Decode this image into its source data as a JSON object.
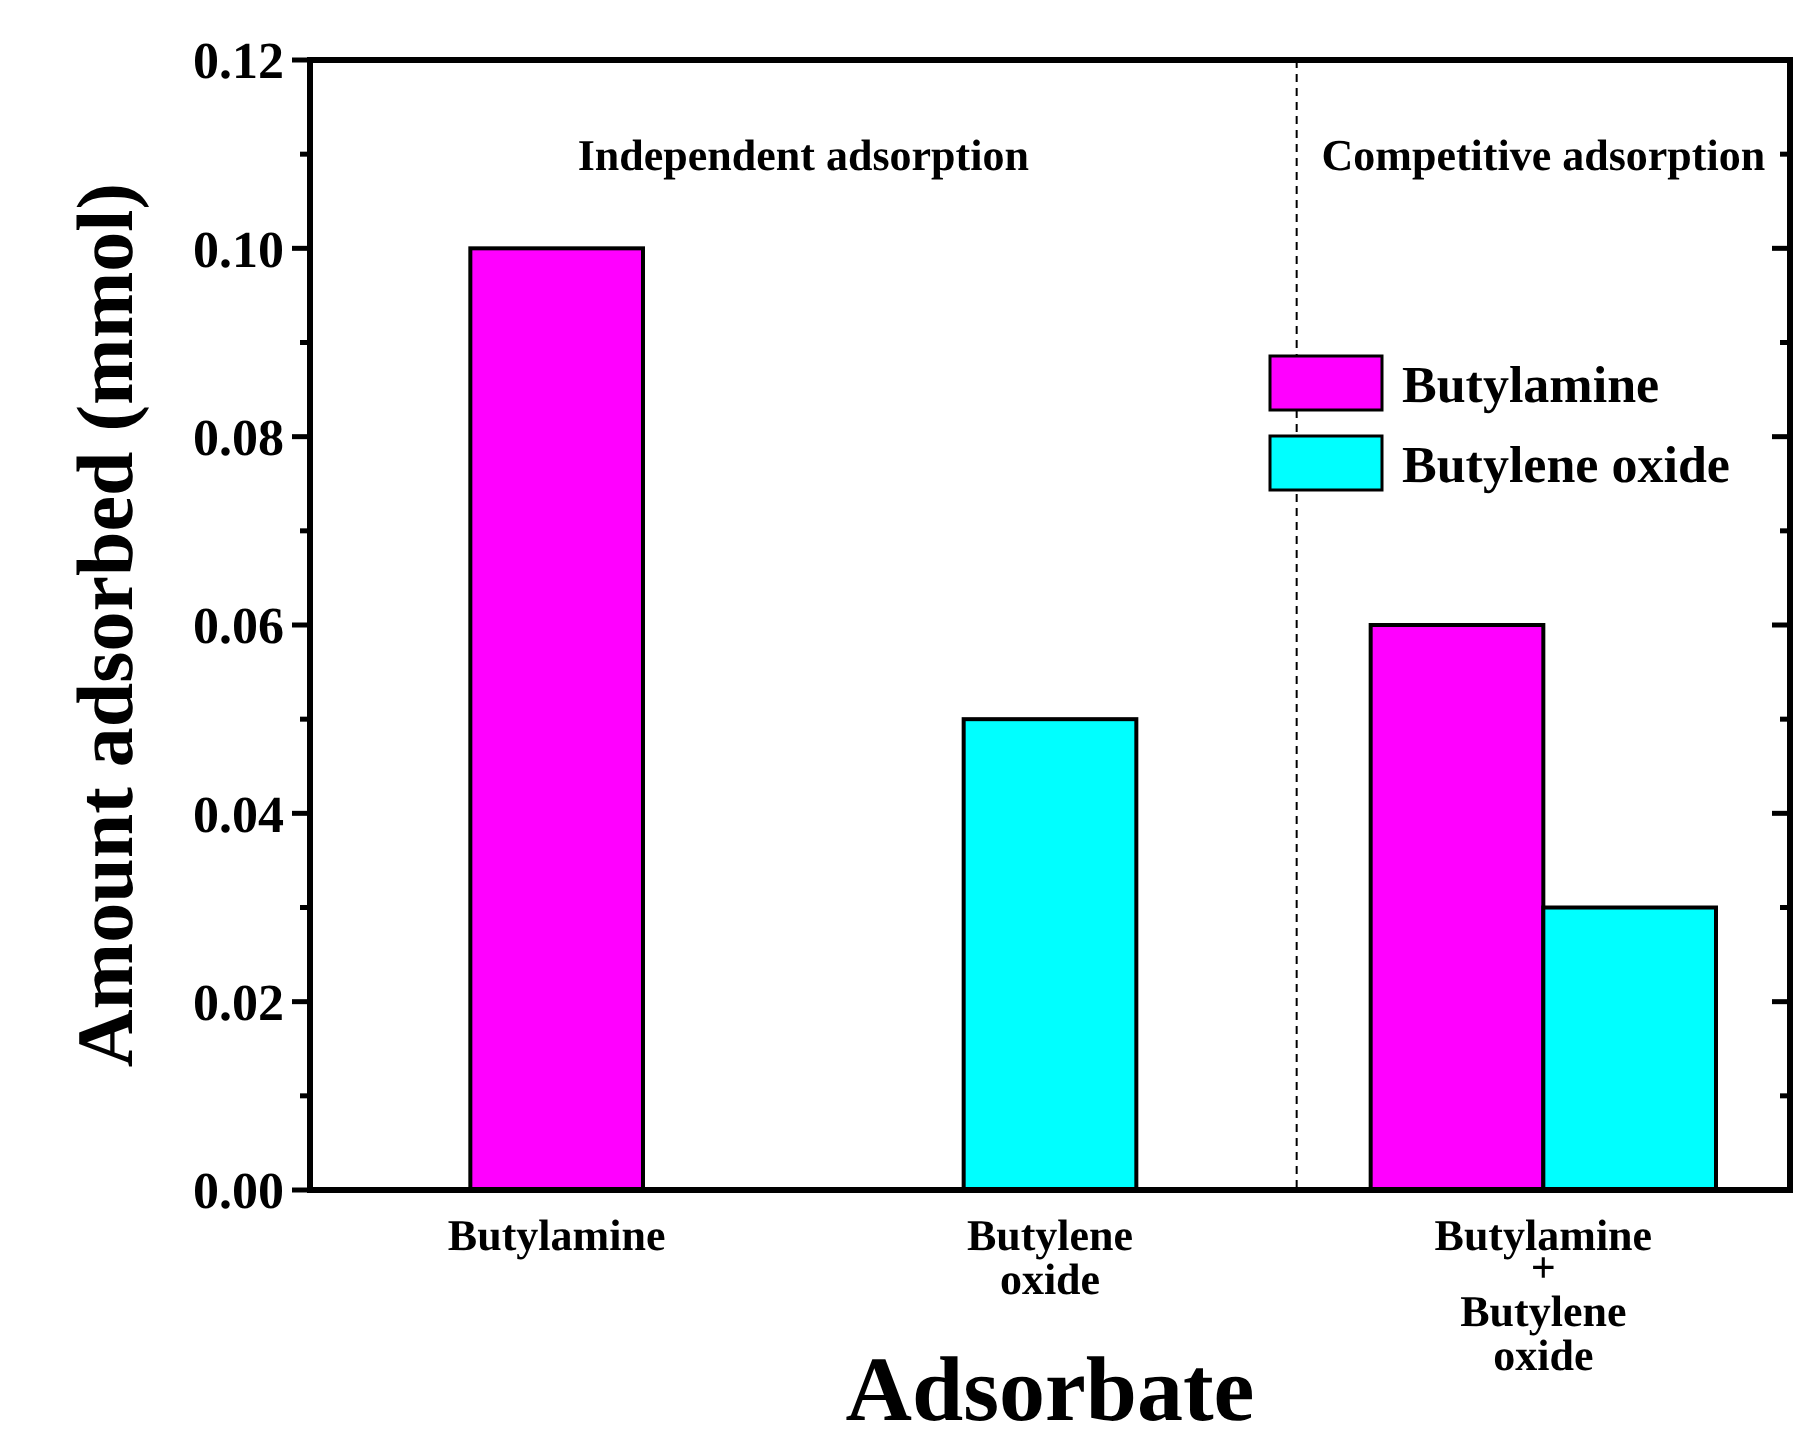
{
  "chart_data": {
    "type": "bar",
    "xlabel": "Adsorbate",
    "ylabel": "Amount adsorbed (mmol)",
    "categories": [
      "Butylamine",
      "Butylene oxide",
      "Butylamine + Butylene oxide"
    ],
    "series": [
      {
        "name": "Butylamine",
        "color": "#ff00ff",
        "values": [
          0.1,
          null,
          0.06
        ]
      },
      {
        "name": "Butylene oxide",
        "color": "#00ffff",
        "values": [
          null,
          0.05,
          0.03
        ]
      }
    ],
    "ylim": [
      0,
      0.12
    ],
    "yticks": [
      {
        "value": 0,
        "label": "0.00"
      },
      {
        "value": 0.01,
        "label": null
      },
      {
        "value": 0.02,
        "label": "0.02"
      },
      {
        "value": 0.03,
        "label": null
      },
      {
        "value": 0.04,
        "label": "0.04"
      },
      {
        "value": 0.05,
        "label": null
      },
      {
        "value": 0.06,
        "label": "0.06"
      },
      {
        "value": 0.07,
        "label": null
      },
      {
        "value": 0.08,
        "label": "0.08"
      },
      {
        "value": 0.09,
        "label": null
      },
      {
        "value": 0.1,
        "label": "0.10"
      },
      {
        "value": 0.11,
        "label": null
      },
      {
        "value": 0.12,
        "label": "0.12"
      }
    ],
    "annotations": [
      "Independent adsorption",
      "Competitive adsorption"
    ],
    "legend": "top right",
    "grid": false
  }
}
